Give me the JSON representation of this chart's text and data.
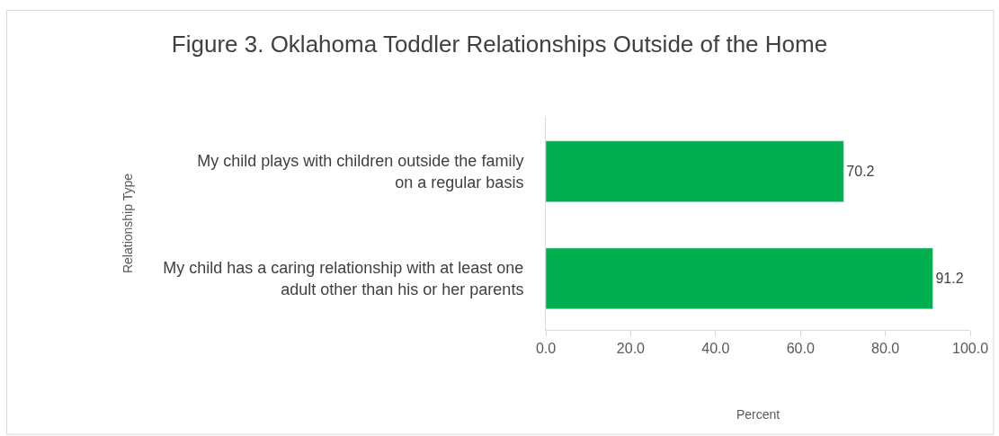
{
  "chart_data": {
    "type": "bar",
    "orientation": "horizontal",
    "title": "Figure 3. Oklahoma Toddler Relationships Outside of the Home",
    "xlabel": "Percent",
    "ylabel": "Relationship Type",
    "categories": [
      "My child plays with children outside the family\non a regular basis",
      "My child has a caring relationship with at least one\nadult other than his or her parents"
    ],
    "values": [
      70.2,
      91.2
    ],
    "color": "#00b050",
    "data_labels": true,
    "xlim": [
      0,
      100
    ],
    "xticks": [
      {
        "value": 0,
        "label": "0.0"
      },
      {
        "value": 20,
        "label": "20.0"
      },
      {
        "value": 40,
        "label": "40.0"
      },
      {
        "value": 60,
        "label": "60.0"
      },
      {
        "value": 80,
        "label": "80.0"
      },
      {
        "value": 100,
        "label": "100.0"
      }
    ]
  }
}
